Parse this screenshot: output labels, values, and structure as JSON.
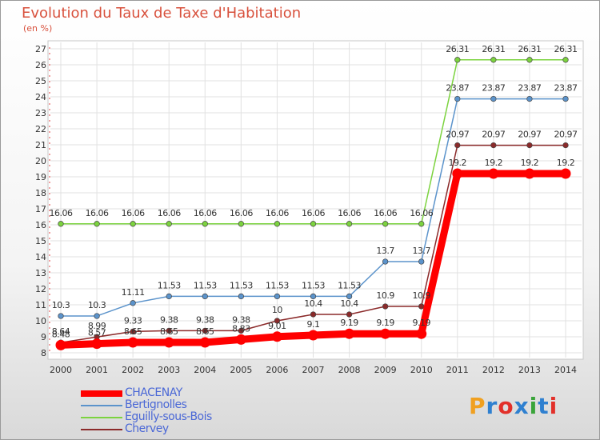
{
  "title": "Evolution du Taux de Taxe d'Habitation",
  "unit_label": "(en %)",
  "logo_text": "Proxiti",
  "chart_data": {
    "type": "line",
    "title": "Evolution du Taux de Taxe d'Habitation",
    "ylabel": "(en %)",
    "xlabel": "",
    "x": [
      "2000",
      "2001",
      "2002",
      "2003",
      "2004",
      "2005",
      "2006",
      "2007",
      "2008",
      "2009",
      "2010",
      "2011",
      "2012",
      "2013",
      "2014"
    ],
    "ylim": [
      8,
      27
    ],
    "yticks": [
      8,
      9,
      10,
      11,
      12,
      13,
      14,
      15,
      16,
      17,
      18,
      19,
      20,
      21,
      22,
      23,
      24,
      25,
      26,
      27
    ],
    "grid": true,
    "legend_position": "bottom-left",
    "series": [
      {
        "name": "CHACENAY",
        "color": "#ff0000",
        "values": [
          8.48,
          8.57,
          8.65,
          8.65,
          8.65,
          8.83,
          9.01,
          9.1,
          9.19,
          9.19,
          9.19,
          19.2,
          19.2,
          19.2,
          19.2
        ],
        "labels": [
          "8.48",
          "8.57",
          "8.65",
          "8.65",
          "8.65",
          "8.83",
          "9.01",
          "9.1",
          "9.19",
          "9.19",
          "9.19",
          "19.2",
          "19.2",
          "19.2",
          "19.2"
        ]
      },
      {
        "name": "Bertignolles",
        "color": "#5b93cb",
        "values": [
          10.3,
          10.3,
          11.11,
          11.53,
          11.53,
          11.53,
          11.53,
          11.53,
          11.53,
          13.7,
          13.7,
          23.87,
          23.87,
          23.87,
          23.87
        ],
        "labels": [
          "10.3",
          "10.3",
          "11.11",
          "11.53",
          "11.53",
          "11.53",
          "11.53",
          "11.53",
          "11.53",
          "13.7",
          "13.7",
          "23.87",
          "23.87",
          "23.87",
          "23.87"
        ]
      },
      {
        "name": "Eguilly-sous-Bois",
        "color": "#7cd33f",
        "values": [
          16.06,
          16.06,
          16.06,
          16.06,
          16.06,
          16.06,
          16.06,
          16.06,
          16.06,
          16.06,
          16.06,
          26.31,
          26.31,
          26.31,
          26.31
        ],
        "labels": [
          "16.06",
          "16.06",
          "16.06",
          "16.06",
          "16.06",
          "16.06",
          "16.06",
          "16.06",
          "16.06",
          "16.06",
          "16.06",
          "26.31",
          "26.31",
          "26.31",
          "26.31"
        ]
      },
      {
        "name": "Chervey",
        "color": "#8b2a2a",
        "values": [
          8.64,
          8.99,
          9.33,
          9.38,
          9.38,
          9.38,
          10,
          10.4,
          10.4,
          10.9,
          10.9,
          20.97,
          20.97,
          20.97,
          20.97
        ],
        "labels": [
          "8.64",
          "8.99",
          "9.33",
          "9.38",
          "9.38",
          "9.38",
          "10",
          "10.4",
          "10.4",
          "10.9",
          "10.9",
          "20.97",
          "20.97",
          "20.97",
          "20.97"
        ]
      }
    ]
  }
}
